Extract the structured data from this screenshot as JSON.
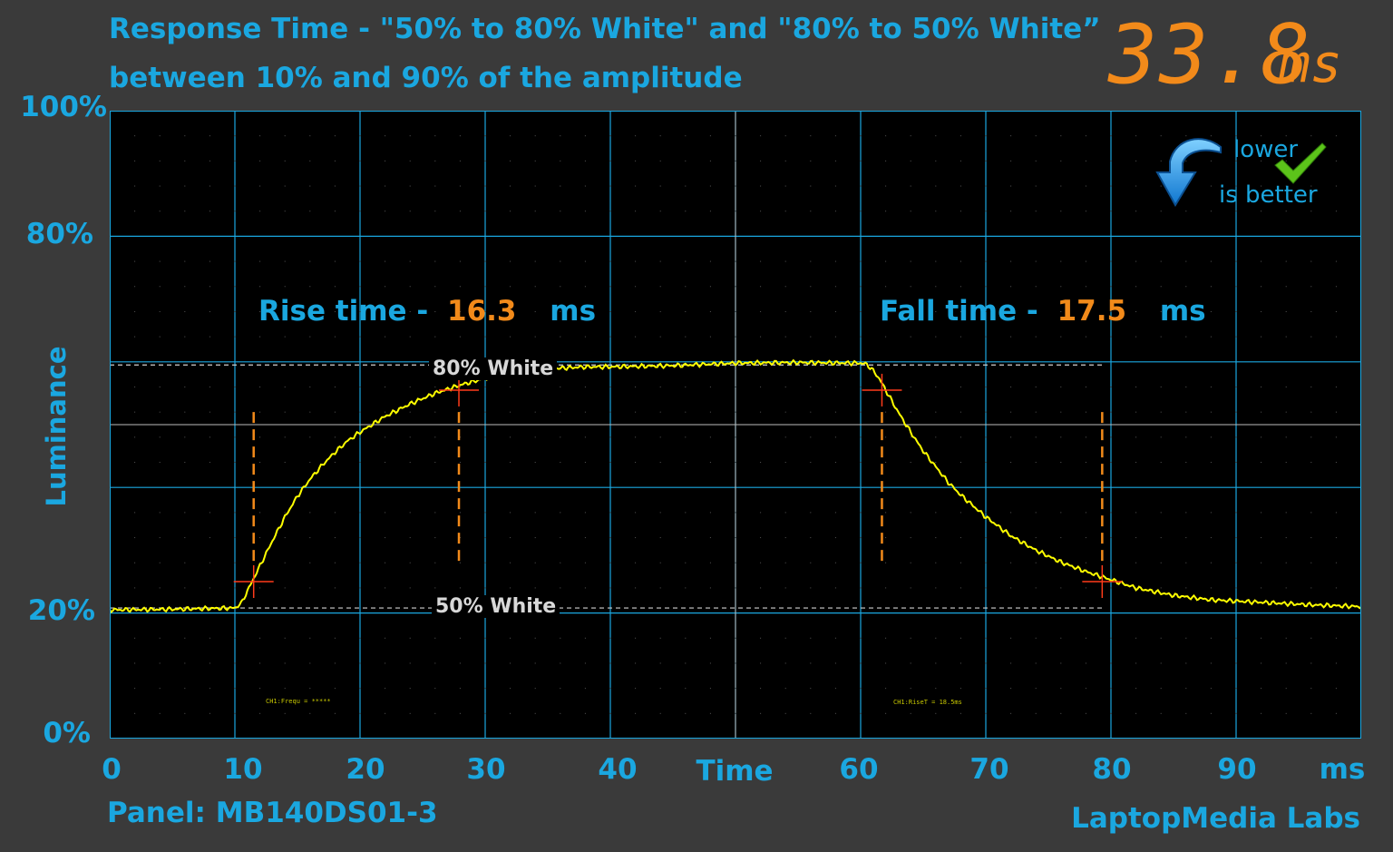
{
  "title_line1": "Response Time - \"50% to 80% White\" and \"80% to 50% White”",
  "title_line2": "between 10% and 90% of the amplitude",
  "total_value": "33.8",
  "total_unit": "ms",
  "badge": {
    "line1": "lower",
    "line2": "is better",
    "icon": "down-arrow-icon",
    "check_icon": "checkmark-icon"
  },
  "rise": {
    "label": "Rise time -",
    "value": "16.3",
    "unit": "ms"
  },
  "fall": {
    "label": "Fall time -",
    "value": "17.5",
    "unit": "ms"
  },
  "level_labels": {
    "high": "80% White",
    "low": "50% White"
  },
  "scope_readouts": {
    "left": "CH1:Frequ = *****",
    "right": "CH1:RiseT = 18.5ms"
  },
  "panel": "Panel: MB140DS01-3",
  "brand": "LaptopMedia Labs",
  "colors": {
    "accent": "#1aa7e0",
    "value": "#f28a1a",
    "trace": "#ffff00",
    "marker": "#ff3b1a",
    "plot_bg": "#000000",
    "page_bg": "#3a3a3a"
  },
  "chart_data": {
    "type": "line",
    "xlabel": "Time",
    "x_unit_label": "ms",
    "ylabel": "Luminance",
    "x_ticks": [
      "0",
      "10",
      "20",
      "30",
      "40",
      "50",
      "60",
      "70",
      "80",
      "90"
    ],
    "x_tick_labels": [
      "0",
      "10",
      "20",
      "30",
      "40",
      "",
      "60",
      "70",
      "80",
      "90"
    ],
    "y_tick_labels": [
      {
        "value": 0,
        "label": "0%"
      },
      {
        "value": 20,
        "label": "20%"
      },
      {
        "value": 80,
        "label": "80%"
      },
      {
        "value": 100,
        "label": "100%"
      }
    ],
    "xlim": [
      0,
      100
    ],
    "ylim": [
      0,
      100
    ],
    "grid": true,
    "series": [
      {
        "x": [
          0,
          5,
          10,
          10.5,
          11,
          12,
          13,
          14,
          15,
          16,
          17,
          18,
          19,
          20,
          22,
          24,
          26,
          28,
          30,
          32,
          34,
          36,
          38,
          40,
          45,
          50,
          55,
          60,
          60.5,
          61,
          61.5,
          62,
          63,
          64,
          65,
          66,
          67,
          68,
          70,
          72,
          74,
          76,
          78,
          80,
          82,
          85,
          88,
          90,
          93,
          96,
          100
        ],
        "y": [
          20.5,
          20.6,
          20.8,
          21.5,
          23.5,
          27.5,
          31.5,
          35.3,
          38.6,
          41.3,
          43.6,
          45.6,
          47.4,
          48.8,
          51.3,
          53.3,
          55.0,
          56.3,
          57.4,
          58.2,
          58.7,
          59.0,
          59.2,
          59.2,
          59.4,
          59.8,
          59.9,
          59.8,
          59.6,
          58.6,
          57.3,
          55.5,
          52.0,
          48.8,
          45.8,
          43.3,
          40.8,
          38.8,
          35.3,
          32.3,
          30.0,
          28.1,
          26.6,
          25.3,
          24.0,
          22.8,
          22.1,
          21.9,
          21.6,
          21.3,
          21.0
        ]
      }
    ],
    "reference_lines": [
      {
        "y": 59.5,
        "label": "80% White"
      },
      {
        "y": 20.8,
        "label": "50% White"
      }
    ],
    "markers": [
      {
        "x": 11.5,
        "y": 25
      },
      {
        "x": 27.9,
        "y": 55.5
      },
      {
        "x": 61.7,
        "y": 55.5
      },
      {
        "x": 79.3,
        "y": 25
      }
    ],
    "measure_lines": [
      11.5,
      27.9,
      61.7,
      79.3
    ]
  }
}
